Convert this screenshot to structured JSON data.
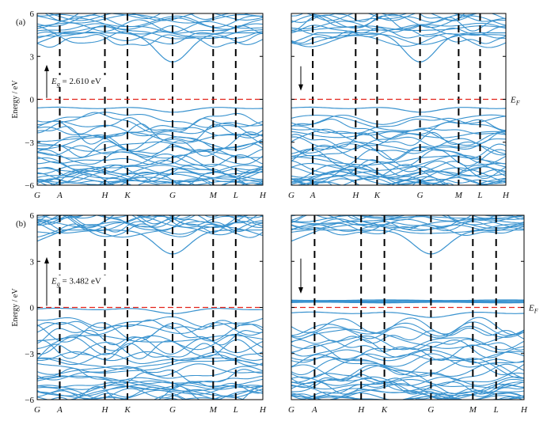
{
  "chart_data": [
    {
      "type": "line",
      "panel_label": "(a)",
      "side": "spin-up",
      "ylabel": "Energy / eV",
      "ylim": [
        -6,
        6
      ],
      "yticks": [
        -6,
        -3,
        0,
        3,
        6
      ],
      "ytick_labels": [
        "−6",
        "−3",
        "0",
        "3",
        "6"
      ],
      "kpath": [
        "G",
        "A",
        "H",
        "K",
        "G",
        "M",
        "L",
        "H"
      ],
      "kpath_positions": [
        0,
        0.1,
        0.3,
        0.4,
        0.6,
        0.78,
        0.88,
        1.0
      ],
      "fermi_level": 0,
      "fermi_label": "",
      "gap_label": "E",
      "gap_label_sub": "g",
      "gap_value": " = 2.610 eV",
      "cbm_energy": 2.61,
      "vbm_energy": -0.55,
      "arrow": "up",
      "up_flat_band": null
    },
    {
      "type": "line",
      "panel_label": "",
      "side": "spin-down",
      "ylabel": "",
      "ylim": [
        -6,
        6
      ],
      "yticks": [
        -6,
        -3,
        0,
        3,
        6
      ],
      "ytick_labels": [
        "",
        "",
        "",
        "",
        ""
      ],
      "kpath": [
        "G",
        "A",
        "H",
        "K",
        "G",
        "M",
        "L",
        "H"
      ],
      "kpath_positions": [
        0,
        0.1,
        0.3,
        0.4,
        0.6,
        0.78,
        0.88,
        1.0
      ],
      "fermi_level": 0,
      "fermi_label": "E",
      "fermi_label_sub": "F",
      "gap_label": "",
      "gap_label_sub": "",
      "gap_value": "",
      "cbm_energy": 2.61,
      "vbm_energy": -0.55,
      "arrow": "down",
      "up_flat_band": null
    },
    {
      "type": "line",
      "panel_label": "(b)",
      "side": "spin-up",
      "ylabel": "Energy / eV",
      "ylim": [
        -6,
        6
      ],
      "yticks": [
        -6,
        -3,
        0,
        3,
        6
      ],
      "ytick_labels": [
        "−6",
        "−3",
        "0",
        "3",
        "6"
      ],
      "kpath": [
        "G",
        "A",
        "H",
        "K",
        "G",
        "M",
        "L",
        "H"
      ],
      "kpath_positions": [
        0,
        0.1,
        0.3,
        0.4,
        0.6,
        0.78,
        0.88,
        1.0
      ],
      "fermi_level": 0,
      "fermi_label": "",
      "gap_label": "E",
      "gap_label_sub": "g",
      "gap_value": " = 3.482 eV",
      "cbm_energy": 3.48,
      "vbm_energy": -0.05,
      "arrow": "up",
      "up_flat_band": null
    },
    {
      "type": "line",
      "panel_label": "",
      "side": "spin-down",
      "ylabel": "",
      "ylim": [
        -6,
        6
      ],
      "yticks": [
        -6,
        -3,
        0,
        3,
        6
      ],
      "ytick_labels": [
        "",
        "",
        "",
        "",
        ""
      ],
      "kpath": [
        "G",
        "A",
        "H",
        "K",
        "G",
        "M",
        "L",
        "H"
      ],
      "kpath_positions": [
        0,
        0.1,
        0.3,
        0.4,
        0.6,
        0.78,
        0.88,
        1.0
      ],
      "fermi_level": 0,
      "fermi_label": "E",
      "fermi_label_sub": "F",
      "gap_label": "",
      "gap_label_sub": "",
      "gap_value": "",
      "cbm_energy": 3.48,
      "vbm_energy": -0.3,
      "arrow": "down",
      "up_flat_band": 0.4
    }
  ],
  "colors": {
    "band": "#3a93cf",
    "fermi": "#e2231a",
    "axis": "#000000",
    "kline": "#000000"
  }
}
